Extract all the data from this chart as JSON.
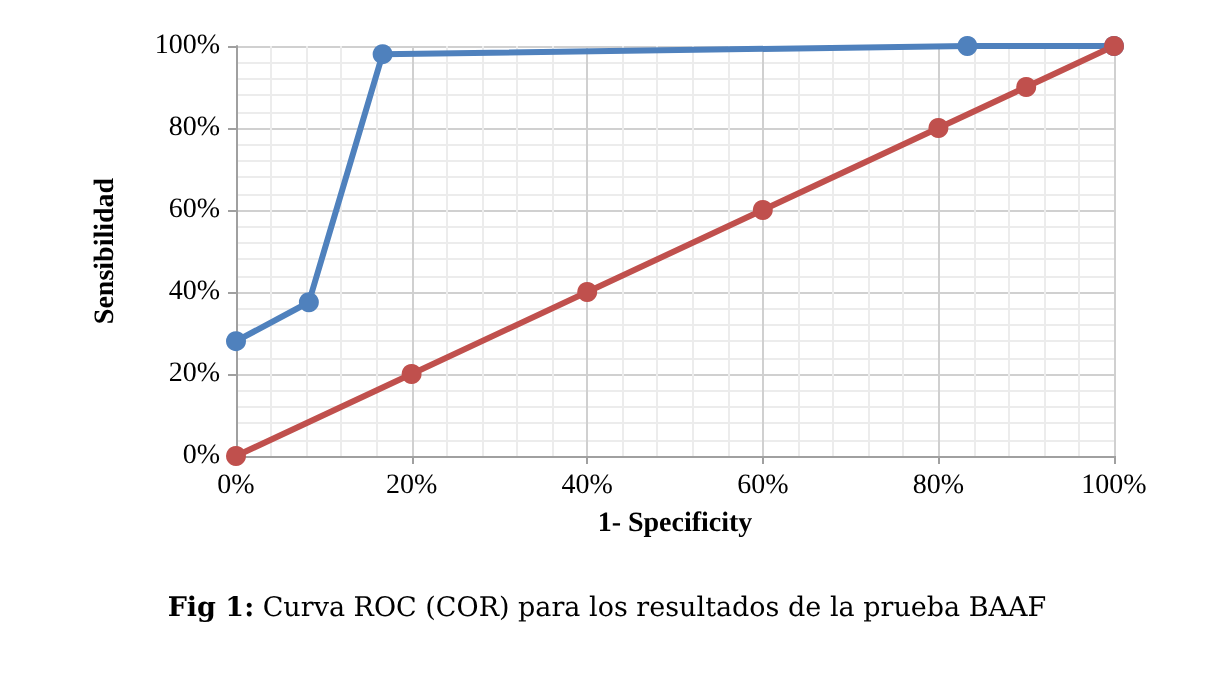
{
  "chart_data": {
    "type": "line",
    "xlabel": "1- Specificity",
    "ylabel": "Sensibilidad",
    "annotations": [
      "Fig 1: Curva ROC (COR) para los resultados de la prueba BAAF"
    ],
    "series": [
      {
        "color": "#4f81bd",
        "x": [
          0,
          8.3,
          16.7,
          83.3,
          100
        ],
        "values": [
          28,
          37.5,
          98,
          100,
          100
        ]
      },
      {
        "color": "#c0504d",
        "x": [
          0,
          20,
          40,
          60,
          80,
          90,
          100
        ],
        "values": [
          0,
          20,
          40,
          60,
          80,
          90,
          100
        ]
      }
    ],
    "xlim": [
      0,
      100
    ],
    "ylim": [
      0,
      100
    ],
    "xticks": [
      {
        "value": 0,
        "label": "0%"
      },
      {
        "value": 20,
        "label": "20%"
      },
      {
        "value": 40,
        "label": "40%"
      },
      {
        "value": 60,
        "label": "60%"
      },
      {
        "value": 80,
        "label": "80%"
      },
      {
        "value": 100,
        "label": "100%"
      }
    ],
    "yticks": [
      {
        "value": 0,
        "label": "0%"
      },
      {
        "value": 20,
        "label": "20%"
      },
      {
        "value": 40,
        "label": "40%"
      },
      {
        "value": 60,
        "label": "60%"
      },
      {
        "value": 80,
        "label": "80%"
      },
      {
        "value": 100,
        "label": "100%"
      }
    ],
    "grid": true,
    "marker": "circle",
    "line_style": "solid"
  }
}
